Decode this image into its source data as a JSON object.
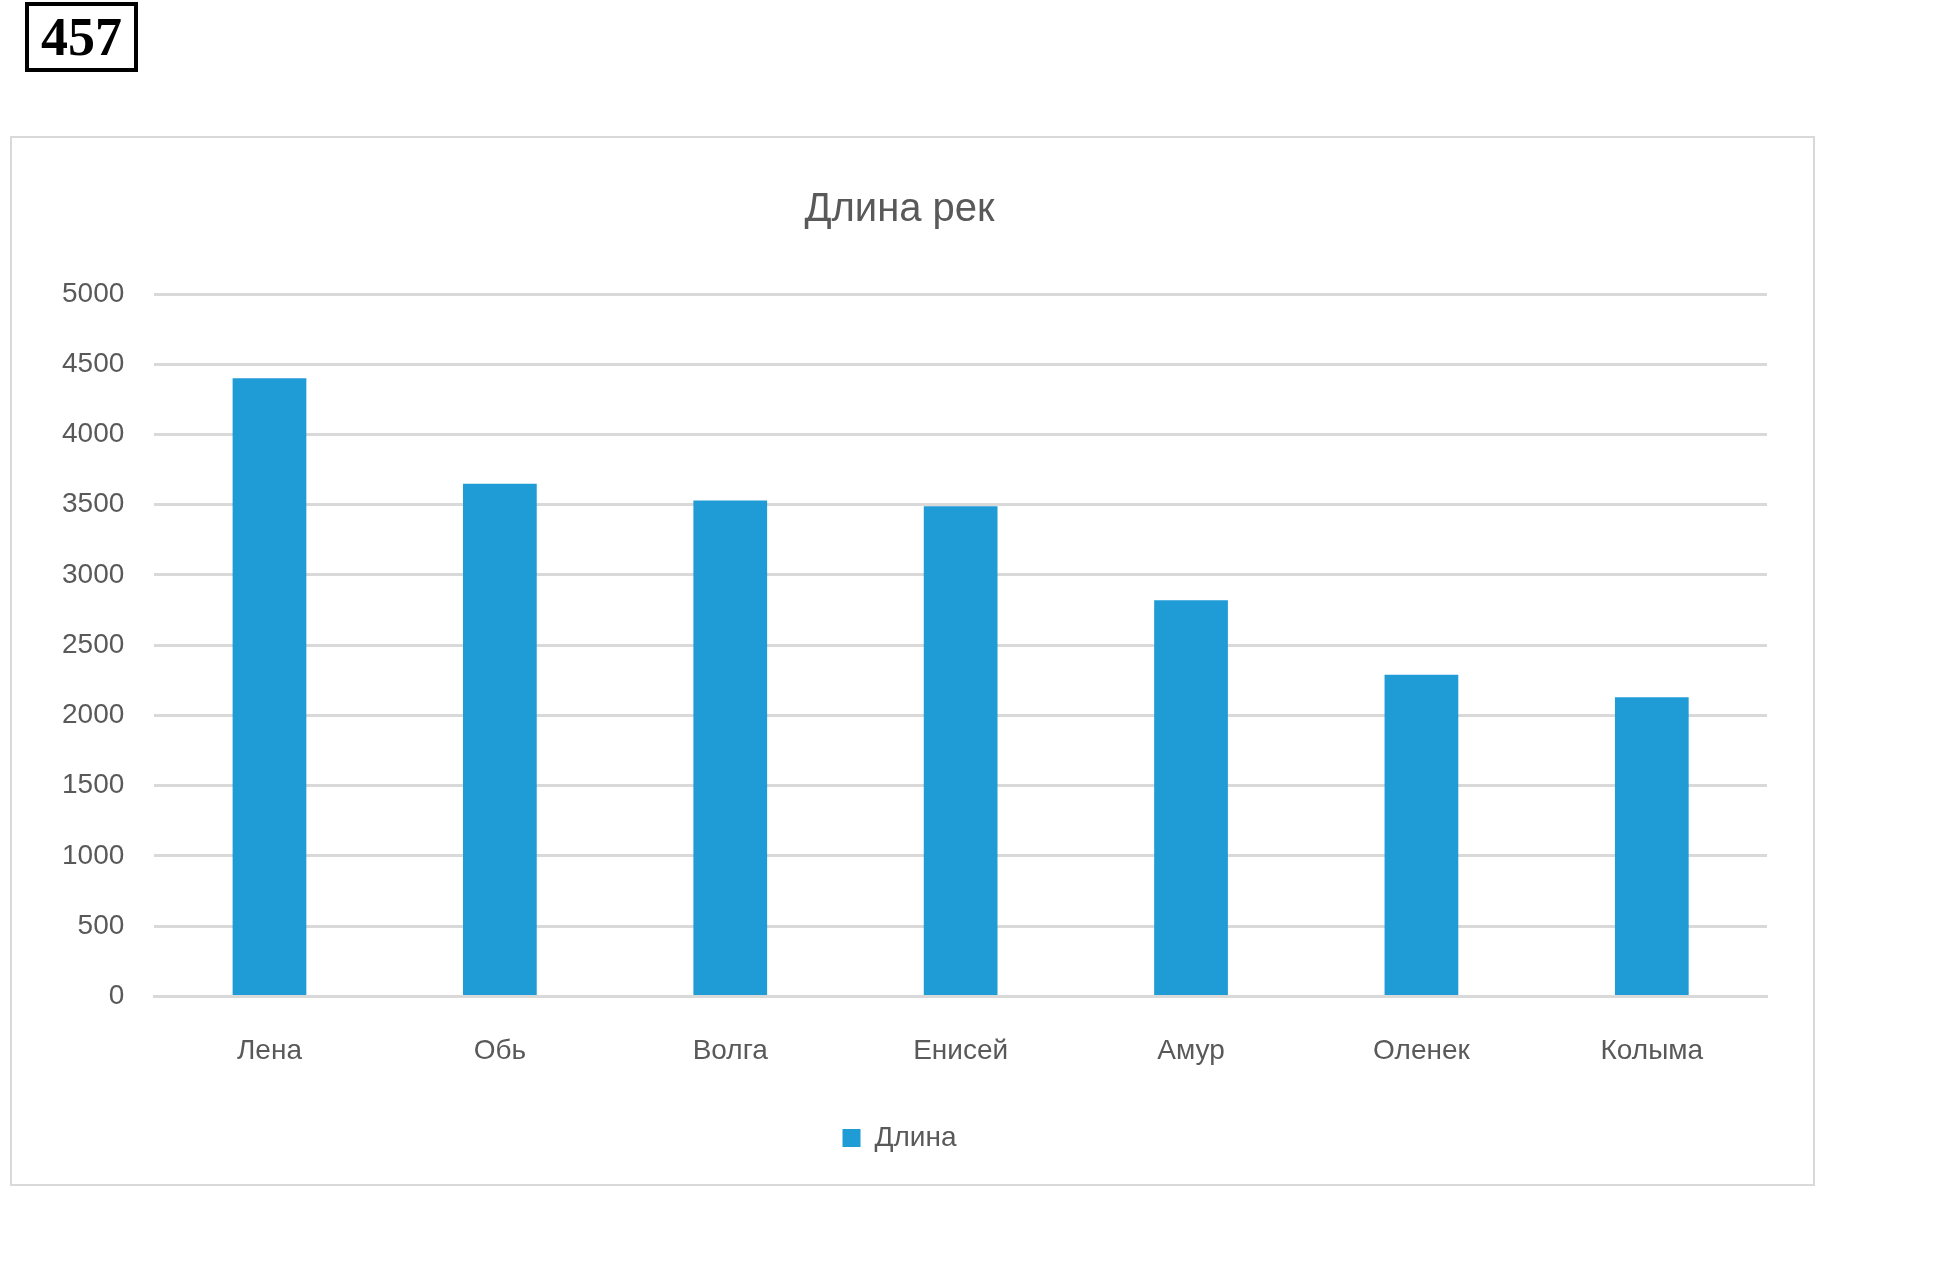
{
  "chart_data": {
    "type": "bar",
    "title": "Длина рек",
    "categories": [
      "Лена",
      "Обь",
      "Волга",
      "Енисей",
      "Амур",
      "Оленек",
      "Колыма"
    ],
    "series": [
      {
        "name": "Длина",
        "color": "#1f9bd6",
        "values": [
          4400,
          3650,
          3530,
          3490,
          2820,
          2290,
          2130
        ]
      }
    ],
    "ylim": [
      0,
      5000
    ],
    "yticks": [
      0,
      500,
      1000,
      1500,
      2000,
      2500,
      3000,
      3500,
      4000,
      4500,
      5000
    ],
    "grid": "y",
    "legend": "bottom",
    "annotations": [
      "457"
    ]
  }
}
